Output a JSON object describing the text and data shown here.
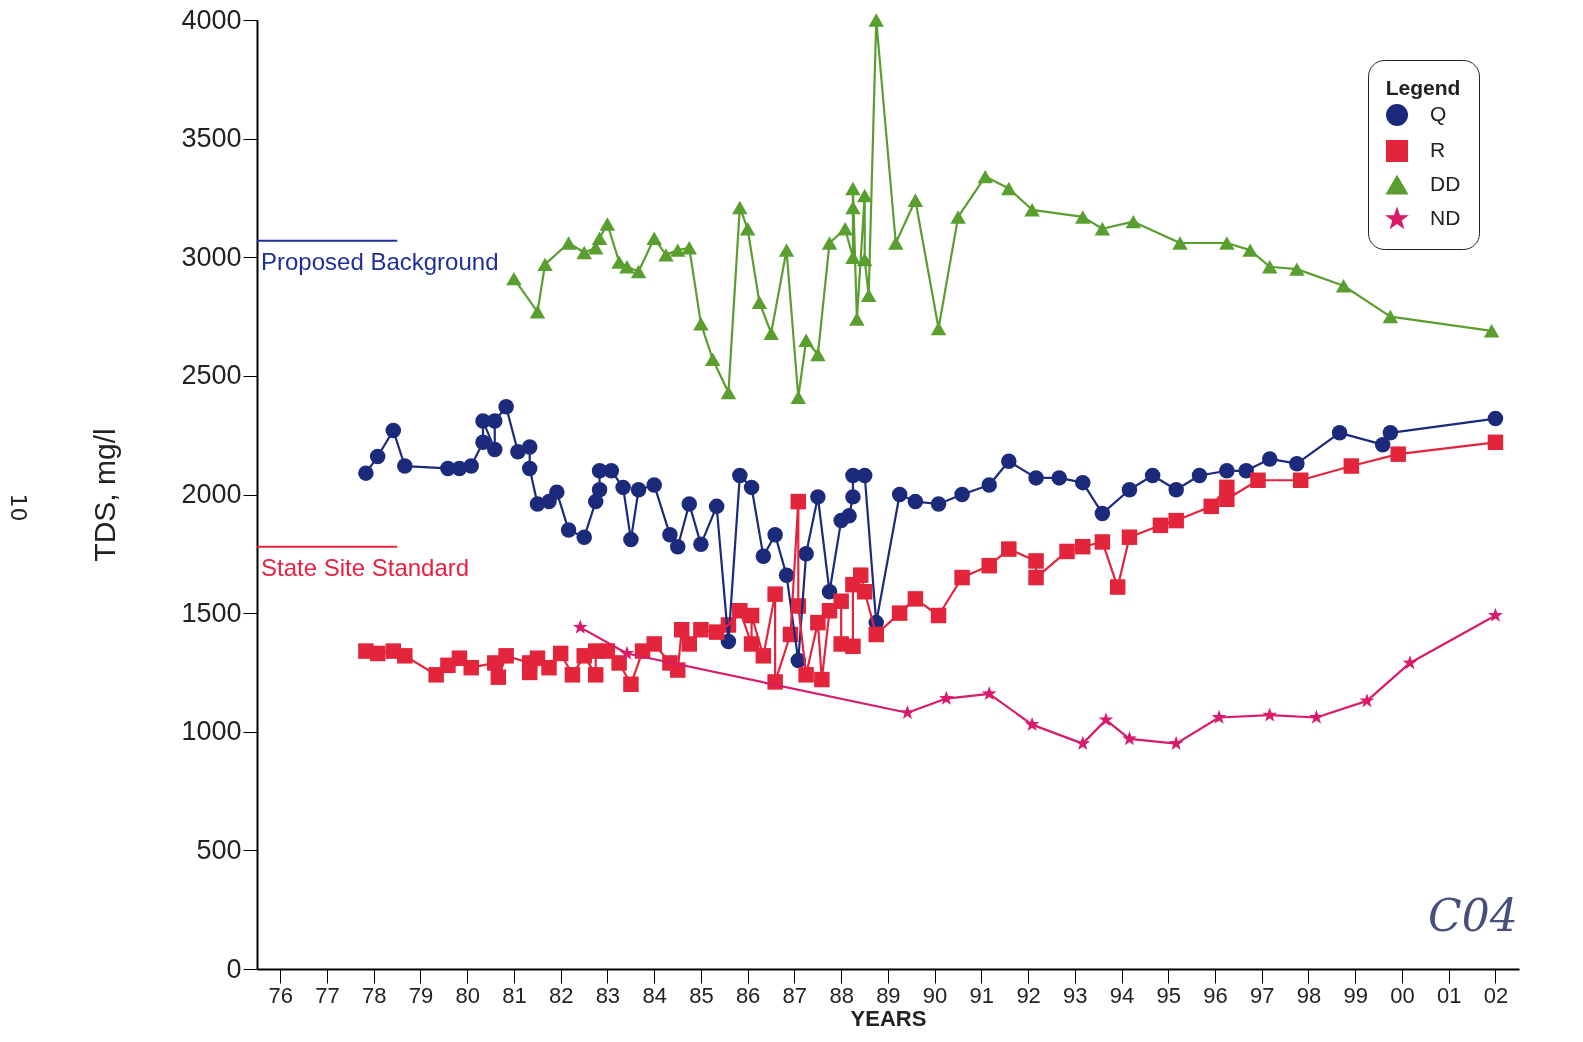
{
  "chart_data": {
    "type": "line",
    "xlabel": "YEARS",
    "ylabel": "TDS, mg/l",
    "legend_title": "Legend",
    "xlim": [
      "1976-01",
      "2003-01"
    ],
    "xticks": [
      {
        "value": "1976-07",
        "label": "76"
      },
      {
        "value": "1977-07",
        "label": "77"
      },
      {
        "value": "1978-07",
        "label": "78"
      },
      {
        "value": "1979-07",
        "label": "79"
      },
      {
        "value": "1980-07",
        "label": "80"
      },
      {
        "value": "1981-07",
        "label": "81"
      },
      {
        "value": "1982-07",
        "label": "82"
      },
      {
        "value": "1983-07",
        "label": "83"
      },
      {
        "value": "1984-07",
        "label": "84"
      },
      {
        "value": "1985-07",
        "label": "85"
      },
      {
        "value": "1986-07",
        "label": "86"
      },
      {
        "value": "1987-07",
        "label": "87"
      },
      {
        "value": "1988-07",
        "label": "88"
      },
      {
        "value": "1989-07",
        "label": "89"
      },
      {
        "value": "1990-07",
        "label": "90"
      },
      {
        "value": "1991-07",
        "label": "91"
      },
      {
        "value": "1992-07",
        "label": "92"
      },
      {
        "value": "1993-07",
        "label": "93"
      },
      {
        "value": "1994-07",
        "label": "94"
      },
      {
        "value": "1995-07",
        "label": "95"
      },
      {
        "value": "1996-07",
        "label": "96"
      },
      {
        "value": "1997-07",
        "label": "97"
      },
      {
        "value": "1998-07",
        "label": "98"
      },
      {
        "value": "1999-07",
        "label": "99"
      },
      {
        "value": "2000-07",
        "label": "00"
      },
      {
        "value": "2001-07",
        "label": "01"
      },
      {
        "value": "2002-07",
        "label": "02"
      }
    ],
    "ylim": [
      0,
      4000
    ],
    "yticks": [
      0,
      500,
      1000,
      1500,
      2000,
      2500,
      3000,
      3500,
      4000
    ],
    "legend": "top right",
    "series": [
      {
        "name": "Q",
        "color": "#1c2a7c",
        "marker": "circle",
        "x": [
          "1978-05",
          "1978-08",
          "1978-12",
          "1979-03",
          "1980-02",
          "1980-05",
          "1980-08",
          "1980-11",
          "1980-11",
          "1981-02",
          "1981-02",
          "1981-05",
          "1981-08",
          "1981-11",
          "1981-11",
          "1982-01",
          "1982-04",
          "1982-06",
          "1982-09",
          "1983-01",
          "1983-04",
          "1983-05",
          "1983-05",
          "1983-08",
          "1983-11",
          "1984-01",
          "1984-03",
          "1984-07",
          "1984-11",
          "1985-01",
          "1985-04",
          "1985-07",
          "1985-11",
          "1986-02",
          "1986-05",
          "1986-08",
          "1986-11",
          "1987-02",
          "1987-05",
          "1987-08",
          "1987-10",
          "1988-01",
          "1988-04",
          "1988-07",
          "1988-09",
          "1988-10",
          "1988-10",
          "1989-01",
          "1989-04",
          "1989-10",
          "1990-02",
          "1990-08",
          "1991-02",
          "1991-09",
          "1992-02",
          "1992-09",
          "1993-03",
          "1993-09",
          "1994-02",
          "1994-09",
          "1995-03",
          "1995-09",
          "1996-03",
          "1996-10",
          "1997-03",
          "1997-09",
          "1998-04",
          "1999-03",
          "2000-02",
          "2000-04",
          "2002-07"
        ],
        "values": [
          2090,
          2160,
          2270,
          2120,
          2110,
          2110,
          2120,
          2220,
          2310,
          2190,
          2310,
          2370,
          2180,
          2200,
          2110,
          1960,
          1970,
          2010,
          1850,
          1820,
          1970,
          2020,
          2100,
          2100,
          2030,
          1810,
          2020,
          2040,
          1830,
          1780,
          1960,
          1790,
          1950,
          1380,
          2080,
          2030,
          1740,
          1830,
          1660,
          1300,
          1750,
          1990,
          1590,
          1890,
          1910,
          1990,
          2080,
          2080,
          1460,
          2000,
          1970,
          1960,
          2000,
          2040,
          2140,
          2070,
          2070,
          2050,
          1920,
          2020,
          2080,
          2020,
          2080,
          2100,
          2100,
          2150,
          2130,
          2260,
          2210,
          2260,
          2320
        ]
      },
      {
        "name": "R",
        "color": "#e3253c",
        "marker": "square",
        "x": [
          "1978-05",
          "1978-08",
          "1978-12",
          "1979-03",
          "1979-11",
          "1980-02",
          "1980-05",
          "1980-08",
          "1981-02",
          "1981-03",
          "1981-05",
          "1981-11",
          "1981-11",
          "1982-01",
          "1982-04",
          "1982-07",
          "1982-10",
          "1983-01",
          "1983-04",
          "1983-04",
          "1983-07",
          "1983-10",
          "1984-01",
          "1984-04",
          "1984-07",
          "1984-11",
          "1985-01",
          "1985-02",
          "1985-04",
          "1985-07",
          "1985-11",
          "1986-02",
          "1986-05",
          "1986-08",
          "1986-08",
          "1986-11",
          "1987-02",
          "1987-02",
          "1987-06",
          "1987-08",
          "1987-08",
          "1987-10",
          "1988-01",
          "1988-02",
          "1988-04",
          "1988-07",
          "1988-07",
          "1988-10",
          "1988-10",
          "1988-12",
          "1989-01",
          "1989-04",
          "1989-10",
          "1990-02",
          "1990-08",
          "1991-02",
          "1991-09",
          "1992-02",
          "1992-09",
          "1992-09",
          "1993-05",
          "1993-09",
          "1994-02",
          "1994-06",
          "1994-09",
          "1995-05",
          "1995-09",
          "1996-06",
          "1996-10",
          "1996-10",
          "1997-06",
          "1998-05",
          "1999-06",
          "2000-06",
          "2002-07"
        ],
        "values": [
          1340,
          1330,
          1340,
          1320,
          1240,
          1280,
          1310,
          1270,
          1290,
          1230,
          1320,
          1290,
          1250,
          1310,
          1270,
          1330,
          1240,
          1320,
          1240,
          1340,
          1340,
          1290,
          1200,
          1340,
          1370,
          1290,
          1260,
          1430,
          1370,
          1430,
          1420,
          1450,
          1510,
          1370,
          1490,
          1320,
          1580,
          1210,
          1410,
          1970,
          1530,
          1240,
          1460,
          1220,
          1510,
          1550,
          1370,
          1360,
          1620,
          1660,
          1590,
          1410,
          1500,
          1560,
          1490,
          1650,
          1700,
          1770,
          1720,
          1650,
          1760,
          1780,
          1800,
          1610,
          1820,
          1870,
          1890,
          1950,
          2030,
          1980,
          2060,
          2060,
          2120,
          2170,
          2220
        ]
      },
      {
        "name": "DD",
        "color": "#5a9e2f",
        "marker": "triangle",
        "x": [
          "1981-07",
          "1982-01",
          "1982-03",
          "1982-09",
          "1983-01",
          "1983-04",
          "1983-05",
          "1983-07",
          "1983-10",
          "1983-12",
          "1984-03",
          "1984-07",
          "1984-10",
          "1985-01",
          "1985-04",
          "1985-07",
          "1985-10",
          "1986-02",
          "1986-05",
          "1986-07",
          "1986-10",
          "1987-01",
          "1987-05",
          "1987-08",
          "1987-10",
          "1988-01",
          "1988-04",
          "1988-08",
          "1988-10",
          "1988-10",
          "1988-10",
          "1988-11",
          "1989-01",
          "1989-01",
          "1989-02",
          "1989-04",
          "1989-09",
          "1990-02",
          "1990-08",
          "1991-01",
          "1991-08",
          "1992-02",
          "1992-08",
          "1993-09",
          "1994-02",
          "1994-10",
          "1995-10",
          "1996-10",
          "1997-04",
          "1997-09",
          "1998-04",
          "1999-04",
          "2000-04",
          "2002-06"
        ],
        "values": [
          2910,
          2770,
          2970,
          3060,
          3020,
          3040,
          3080,
          3140,
          2980,
          2960,
          2940,
          3080,
          3010,
          3030,
          3040,
          2720,
          2570,
          2430,
          3210,
          3120,
          2810,
          2680,
          3030,
          2410,
          2650,
          2590,
          3060,
          3120,
          3000,
          3210,
          3290,
          2740,
          3260,
          2990,
          2840,
          4000,
          3060,
          3240,
          2700,
          3170,
          3340,
          3290,
          3200,
          3170,
          3120,
          3150,
          3060,
          3060,
          3030,
          2960,
          2950,
          2880,
          2750,
          2690
        ]
      },
      {
        "name": "ND",
        "color": "#d81b6b",
        "marker": "star",
        "x": [
          "1982-12",
          "1983-12",
          "1989-12",
          "1990-10",
          "1991-09",
          "1992-08",
          "1993-09",
          "1994-03",
          "1994-09",
          "1995-09",
          "1996-08",
          "1997-09",
          "1998-09",
          "1999-10",
          "2000-09",
          "2002-07"
        ],
        "values": [
          1440,
          1330,
          1080,
          1140,
          1160,
          1030,
          950,
          1050,
          970,
          950,
          1060,
          1070,
          1060,
          1130,
          1290,
          1490
        ]
      }
    ],
    "ref_lines": [
      {
        "axis": "y",
        "value": 3070,
        "label": "Proposed Background",
        "color": "#1f2f9a"
      },
      {
        "axis": "y",
        "value": 1780,
        "label": "State Site Standard",
        "color": "#e8213f"
      }
    ],
    "annotations": [
      "10",
      "C04"
    ]
  }
}
